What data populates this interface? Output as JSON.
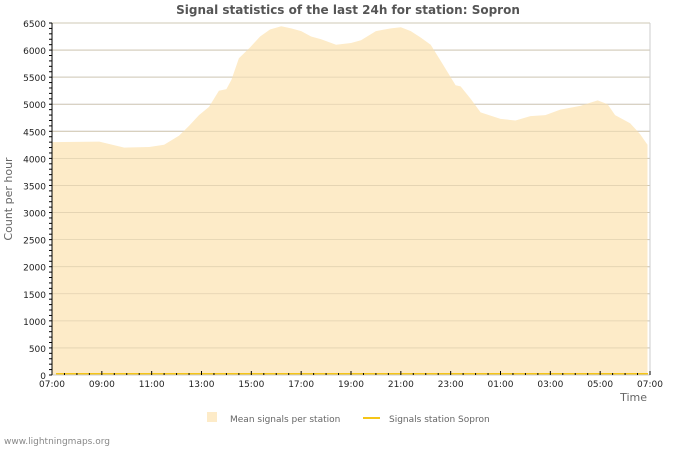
{
  "chart_data": {
    "type": "area",
    "title": "Signal statistics of the last 24h for station: Sopron",
    "xlabel": "Time",
    "ylabel": "Count per hour",
    "ylim": [
      0,
      6500
    ],
    "xlim_hours": [
      0,
      24
    ],
    "yticks": [
      0,
      500,
      1000,
      1500,
      2000,
      2500,
      3000,
      3500,
      4000,
      4500,
      5000,
      5500,
      6000,
      6500
    ],
    "xtick_labels": [
      "07:00",
      "09:00",
      "11:00",
      "13:00",
      "15:00",
      "17:00",
      "19:00",
      "21:00",
      "23:00",
      "01:00",
      "03:00",
      "05:00",
      "07:00"
    ],
    "grid": true,
    "legend_placement": "bottom",
    "series": [
      {
        "name": "Mean signals per station",
        "style": "area",
        "color": "#fdebc8",
        "x": [
          0,
          1.9,
          2.9,
          3.9,
          4.5,
          5.1,
          5.5,
          5.9,
          6.3,
          6.7,
          7.0,
          7.2,
          7.5,
          7.95,
          8.35,
          8.75,
          9.2,
          9.6,
          10.0,
          10.4,
          10.8,
          11.4,
          12.0,
          12.4,
          13.0,
          13.6,
          14.0,
          14.4,
          14.8,
          15.2,
          15.6,
          16.2,
          16.4,
          16.8,
          17.2,
          18.0,
          18.6,
          19.2,
          19.8,
          20.4,
          21.2,
          21.9,
          22.3,
          22.6,
          23.2,
          23.6,
          23.9
        ],
        "y": [
          4300,
          4310,
          4200,
          4210,
          4250,
          4420,
          4600,
          4800,
          4950,
          5250,
          5280,
          5450,
          5850,
          6050,
          6250,
          6380,
          6440,
          6400,
          6350,
          6250,
          6200,
          6100,
          6130,
          6180,
          6350,
          6400,
          6420,
          6350,
          6230,
          6100,
          5800,
          5350,
          5330,
          5100,
          4850,
          4730,
          4700,
          4780,
          4800,
          4900,
          4970,
          5070,
          5000,
          4800,
          4650,
          4450,
          4250
        ]
      },
      {
        "name": "Signals station Sopron",
        "style": "line",
        "color": "#f5c518",
        "x": [
          0,
          24
        ],
        "y": [
          0,
          0
        ]
      }
    ]
  },
  "footer": "www.lightningmaps.org"
}
